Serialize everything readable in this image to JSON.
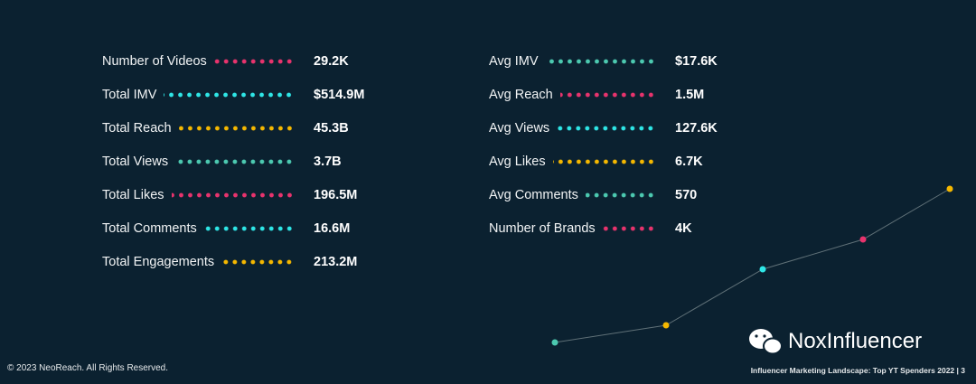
{
  "left_stats": [
    {
      "label": "Number of Videos",
      "value": "29.2K",
      "dot_color": "#e8336d"
    },
    {
      "label": "Total IMV",
      "value": "$514.9M",
      "dot_color": "#2ee6e6"
    },
    {
      "label": "Total Reach",
      "value": "45.3B",
      "dot_color": "#f5b800"
    },
    {
      "label": "Total Views",
      "value": "3.7B",
      "dot_color": "#4cc9b0"
    },
    {
      "label": "Total Likes",
      "value": "196.5M",
      "dot_color": "#e8336d"
    },
    {
      "label": "Total Comments",
      "value": "16.6M",
      "dot_color": "#2ee6e6"
    },
    {
      "label": "Total Engagements",
      "value": "213.2M",
      "dot_color": "#f5b800"
    }
  ],
  "right_stats": [
    {
      "label": "Avg IMV",
      "value": "$17.6K",
      "dot_color": "#4cc9b0"
    },
    {
      "label": "Avg Reach",
      "value": "1.5M",
      "dot_color": "#e8336d"
    },
    {
      "label": "Avg Views",
      "value": "127.6K",
      "dot_color": "#2ee6e6"
    },
    {
      "label": "Avg Likes",
      "value": "6.7K",
      "dot_color": "#f5b800"
    },
    {
      "label": "Avg Comments",
      "value": "570",
      "dot_color": "#4cc9b0"
    },
    {
      "label": "Number of Brands",
      "value": "4K",
      "dot_color": "#e8336d"
    }
  ],
  "footer": {
    "copyright": "© 2023 NeoReach. All Rights Reserved.",
    "page_info": "Influencer Marketing Landscape: Top YT Spenders 2022 | 3"
  },
  "watermark": "NoxInfluencer"
}
